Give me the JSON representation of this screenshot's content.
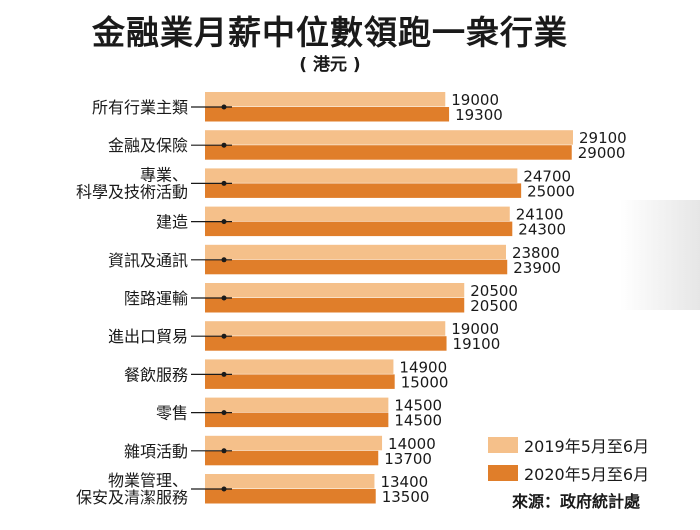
{
  "chart_data": {
    "type": "bar",
    "orientation": "horizontal",
    "title": "金融業月薪中位數領跑一衆行業",
    "subtitle": "( 港元 )",
    "source": "來源：政府統計處",
    "legend_position": "bottom-right",
    "xlim": [
      0,
      30000
    ],
    "categories": [
      [
        "所有行業主類"
      ],
      [
        "金融及保險"
      ],
      [
        "專業、",
        "科學及技術活動"
      ],
      [
        "建造"
      ],
      [
        "資訊及通訊"
      ],
      [
        "陸路運輸"
      ],
      [
        "進出口貿易"
      ],
      [
        "餐飲服務"
      ],
      [
        "零售"
      ],
      [
        "雜項活動"
      ],
      [
        "物業管理、",
        "保安及清潔服務"
      ]
    ],
    "series": [
      {
        "name": "2019年5月至6月",
        "color": "#f5c08a",
        "values": [
          19000,
          29100,
          24700,
          24100,
          23800,
          20500,
          19000,
          14900,
          14500,
          14000,
          13400
        ]
      },
      {
        "name": "2020年5月至6月",
        "color": "#e07e2a",
        "values": [
          19300,
          29000,
          25000,
          24300,
          23900,
          20500,
          19100,
          15000,
          14500,
          13700,
          13500
        ]
      }
    ]
  }
}
